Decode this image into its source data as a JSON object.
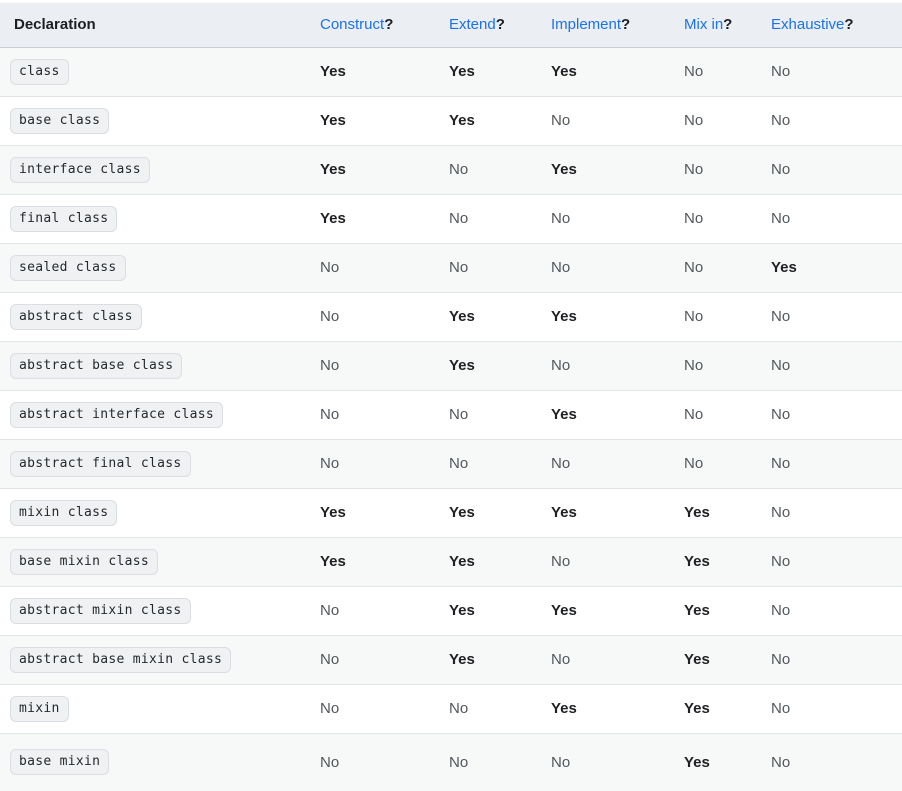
{
  "table": {
    "header": {
      "declaration_label": "Declaration",
      "columns": [
        {
          "name": "construct",
          "label": "Construct",
          "suffix": "?"
        },
        {
          "name": "extend",
          "label": "Extend",
          "suffix": "?"
        },
        {
          "name": "implement",
          "label": "Implement",
          "suffix": "?"
        },
        {
          "name": "mix-in",
          "label": "Mix in",
          "suffix": "?"
        },
        {
          "name": "exhaustive",
          "label": "Exhaustive",
          "suffix": "?"
        }
      ]
    },
    "rows": [
      {
        "declaration": "class",
        "values": [
          "Yes",
          "Yes",
          "Yes",
          "No",
          "No"
        ]
      },
      {
        "declaration": "base class",
        "values": [
          "Yes",
          "Yes",
          "No",
          "No",
          "No"
        ]
      },
      {
        "declaration": "interface class",
        "values": [
          "Yes",
          "No",
          "Yes",
          "No",
          "No"
        ]
      },
      {
        "declaration": "final class",
        "values": [
          "Yes",
          "No",
          "No",
          "No",
          "No"
        ]
      },
      {
        "declaration": "sealed class",
        "values": [
          "No",
          "No",
          "No",
          "No",
          "Yes"
        ]
      },
      {
        "declaration": "abstract class",
        "values": [
          "No",
          "Yes",
          "Yes",
          "No",
          "No"
        ]
      },
      {
        "declaration": "abstract base class",
        "values": [
          "No",
          "Yes",
          "No",
          "No",
          "No"
        ]
      },
      {
        "declaration": "abstract interface class",
        "values": [
          "No",
          "No",
          "Yes",
          "No",
          "No"
        ]
      },
      {
        "declaration": "abstract final class",
        "values": [
          "No",
          "No",
          "No",
          "No",
          "No"
        ]
      },
      {
        "declaration": "mixin class",
        "values": [
          "Yes",
          "Yes",
          "Yes",
          "Yes",
          "No"
        ]
      },
      {
        "declaration": "base mixin class",
        "values": [
          "Yes",
          "Yes",
          "No",
          "Yes",
          "No"
        ]
      },
      {
        "declaration": "abstract mixin class",
        "values": [
          "No",
          "Yes",
          "Yes",
          "Yes",
          "No"
        ]
      },
      {
        "declaration": "abstract base mixin class",
        "values": [
          "No",
          "Yes",
          "No",
          "Yes",
          "No"
        ]
      },
      {
        "declaration": "mixin",
        "values": [
          "No",
          "No",
          "Yes",
          "Yes",
          "No"
        ]
      },
      {
        "declaration": "base mixin",
        "values": [
          "No",
          "No",
          "No",
          "Yes",
          "No"
        ]
      }
    ]
  },
  "colors": {
    "link_blue": "#1a73e8",
    "header_background": "#ebeef2",
    "header_divider": "#c9ced4",
    "row_divider": "#e2e5e8",
    "row_stripe": "#f7f8f8",
    "code_background": "#eff1f3",
    "code_border": "#dadde1",
    "code_text": "#24292e",
    "yes_text": "#202124",
    "no_text": "#52575c"
  }
}
